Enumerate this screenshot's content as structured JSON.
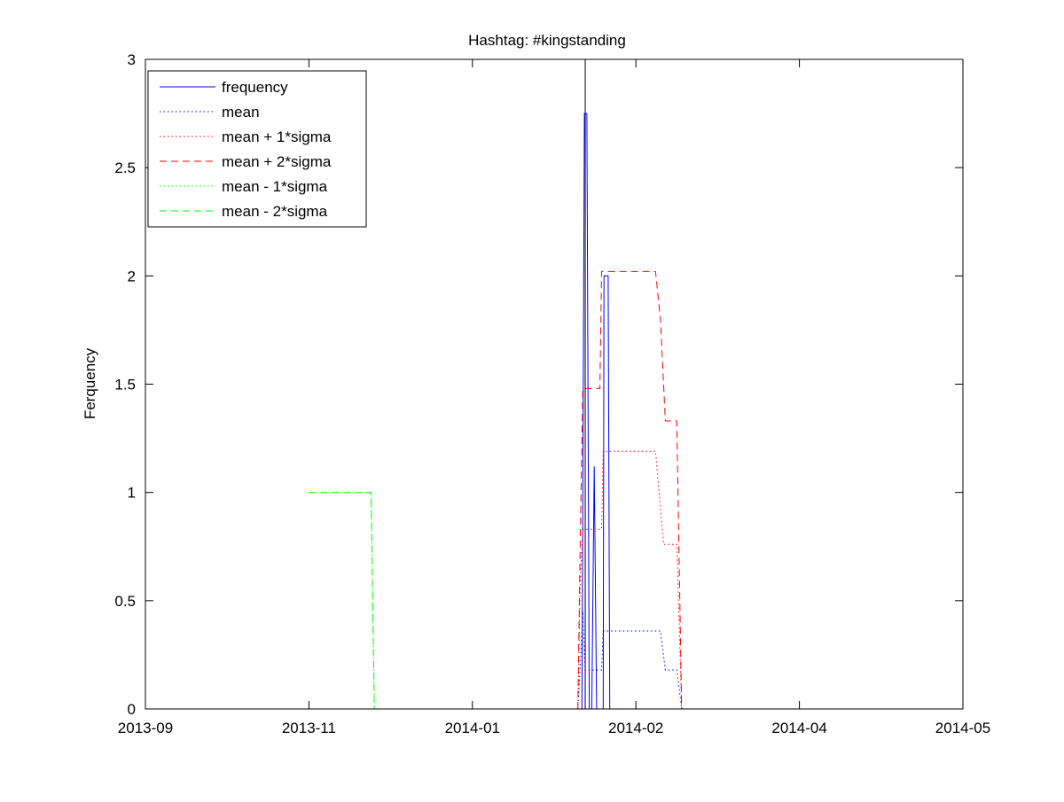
{
  "chart_data": {
    "type": "line",
    "title": "Hashtag: #kingstanding",
    "xlabel": "",
    "ylabel": "Ferquency",
    "x_ticks": [
      "2013-09",
      "2013-11",
      "2014-01",
      "2014-02",
      "2014-04",
      "2014-05"
    ],
    "y_ticks": [
      "0",
      "0.5",
      "1",
      "1.5",
      "2",
      "2.5",
      "3"
    ],
    "xlim": [
      0,
      5
    ],
    "ylim": [
      0,
      3
    ],
    "grid": false,
    "legend_position": "top-left",
    "series": [
      {
        "name": "frequency",
        "color": "#0000ff",
        "style": "solid",
        "points": [
          [
            2.67,
            0
          ],
          [
            2.685,
            2.75
          ],
          [
            2.7,
            2.75
          ],
          [
            2.715,
            0
          ],
          [
            2.73,
            0
          ],
          [
            2.745,
            1.12
          ],
          [
            2.76,
            0
          ],
          [
            2.8,
            0
          ],
          [
            2.805,
            2.0
          ],
          [
            2.83,
            2.0
          ],
          [
            2.84,
            0
          ]
        ]
      },
      {
        "name": "mean",
        "color": "#0000ff",
        "style": "dotted",
        "points": [
          [
            2.645,
            0
          ],
          [
            2.66,
            0.2
          ],
          [
            2.675,
            0.45
          ],
          [
            2.69,
            0.18
          ],
          [
            2.74,
            0.18
          ],
          [
            2.76,
            0.18
          ],
          [
            2.79,
            0.18
          ],
          [
            2.8,
            0.36
          ],
          [
            3.15,
            0.36
          ],
          [
            3.18,
            0.18
          ],
          [
            3.25,
            0.18
          ],
          [
            3.28,
            0.0
          ]
        ]
      },
      {
        "name": "mean + 1*sigma",
        "color": "#ff0000",
        "style": "dotted",
        "points": [
          [
            2.645,
            0
          ],
          [
            2.66,
            0.6
          ],
          [
            2.675,
            0.83
          ],
          [
            2.69,
            0.83
          ],
          [
            2.74,
            0.83
          ],
          [
            2.76,
            0.83
          ],
          [
            2.79,
            0.83
          ],
          [
            2.8,
            1.19
          ],
          [
            3.12,
            1.19
          ],
          [
            3.17,
            0.76
          ],
          [
            3.25,
            0.76
          ],
          [
            3.28,
            0.0
          ]
        ]
      },
      {
        "name": "mean + 2*sigma",
        "color": "#ff0000",
        "style": "dashed",
        "points": [
          [
            2.645,
            0
          ],
          [
            2.66,
            0.8
          ],
          [
            2.675,
            1.48
          ],
          [
            2.69,
            1.48
          ],
          [
            2.74,
            1.48
          ],
          [
            2.76,
            1.48
          ],
          [
            2.78,
            1.48
          ],
          [
            2.79,
            2.02
          ],
          [
            3.12,
            2.02
          ],
          [
            3.15,
            1.8
          ],
          [
            3.18,
            1.33
          ],
          [
            3.25,
            1.33
          ],
          [
            3.28,
            0.0
          ]
        ]
      },
      {
        "name": "mean - 1*sigma",
        "color": "#00ff00",
        "style": "dotted",
        "points": [
          [
            1.0,
            1.0
          ],
          [
            1.38,
            1.0
          ],
          [
            1.4,
            0.0
          ]
        ]
      },
      {
        "name": "mean - 2*sigma",
        "color": "#00ff00",
        "style": "dashed",
        "points": [
          [
            1.0,
            1.0
          ],
          [
            1.38,
            1.0
          ],
          [
            1.4,
            0.0
          ]
        ]
      }
    ],
    "annotations": [
      {
        "type": "vertical-line",
        "x": 2.69,
        "color": "#000000"
      }
    ]
  }
}
